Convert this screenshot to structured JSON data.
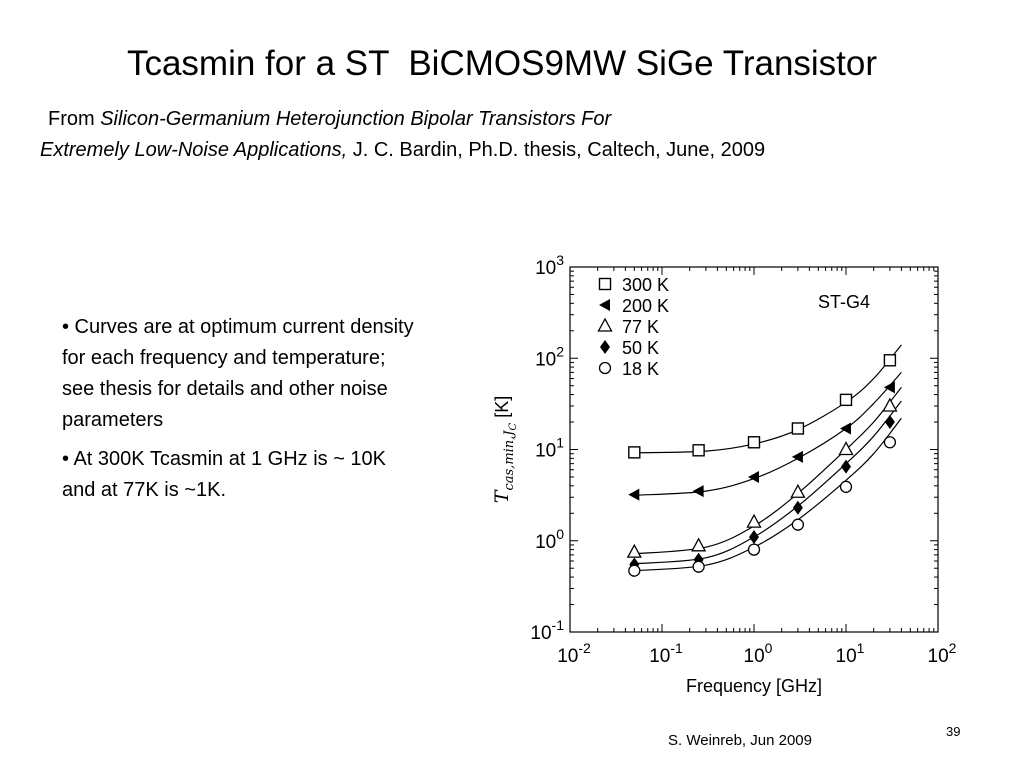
{
  "slide": {
    "title": "Tcasmin for a ST  BiCMOS9MW SiGe Transistor",
    "source_prefix": "From ",
    "source_title_line1": "Silicon-Germanium Heterojunction Bipolar Transistors For",
    "source_title_line2": "Extremely Low-Noise Applications,",
    "source_rest": " J. C. Bardin, Ph.D. thesis, Caltech, June, 2009",
    "bullets": [
      "• Curves are at optimum current density for each frequency and temperature; see thesis for details and other noise parameters",
      "• At 300K Tcasmin at 1 GHz is ~ 10K and at 77K is ~1K."
    ],
    "slide_number": "39",
    "footer": "S. Weinreb, Jun 2009"
  },
  "chart_data": {
    "type": "scatter",
    "annotation": "ST-G4",
    "xlabel": "Frequency [GHz]",
    "ylabel_main": "T",
    "ylabel_sub": "cas,min,J",
    "ylabel_subsub": "C",
    "ylabel_unit": " [K]",
    "x_scale": "log",
    "y_scale": "log",
    "xlim": [
      0.01,
      100
    ],
    "ylim": [
      0.1,
      1000
    ],
    "grid": false,
    "legend_position": "top-left",
    "x_tick_exponents": [
      "-2",
      "-1",
      "0",
      "1",
      "2"
    ],
    "y_tick_exponents": [
      "-1",
      "0",
      "1",
      "2",
      "3"
    ],
    "tick_base": "10",
    "x": [
      0.05,
      0.25,
      1.0,
      3.0,
      10.0,
      30.0
    ],
    "series": [
      {
        "name": "300 K",
        "marker": "open-square",
        "values": [
          9.3,
          9.8,
          12,
          17,
          35,
          95
        ],
        "fit": [
          [
            0.05,
            9.2
          ],
          [
            0.3,
            9.6
          ],
          [
            1,
            11.5
          ],
          [
            3,
            16.5
          ],
          [
            10,
            33
          ],
          [
            20,
            60
          ],
          [
            40,
            140
          ]
        ]
      },
      {
        "name": "200 K",
        "marker": "filled-left-triangle",
        "values": [
          3.2,
          3.5,
          5.0,
          8.3,
          17,
          48
        ],
        "fit": [
          [
            0.05,
            3.15
          ],
          [
            0.3,
            3.5
          ],
          [
            1,
            4.8
          ],
          [
            3,
            8.0
          ],
          [
            10,
            17
          ],
          [
            20,
            32
          ],
          [
            40,
            70
          ]
        ]
      },
      {
        "name": "77 K",
        "marker": "open-triangle",
        "values": [
          0.75,
          0.88,
          1.6,
          3.4,
          10,
          30
        ],
        "fit": [
          [
            0.05,
            0.72
          ],
          [
            0.3,
            0.85
          ],
          [
            1,
            1.45
          ],
          [
            3,
            3.3
          ],
          [
            10,
            10
          ],
          [
            20,
            20
          ],
          [
            40,
            48
          ]
        ]
      },
      {
        "name": "50 K",
        "marker": "filled-diamond",
        "values": [
          0.55,
          0.62,
          1.1,
          2.3,
          6.5,
          20
        ],
        "fit": [
          [
            0.05,
            0.56
          ],
          [
            0.3,
            0.65
          ],
          [
            1,
            1.1
          ],
          [
            3,
            2.4
          ],
          [
            10,
            7
          ],
          [
            20,
            14
          ],
          [
            40,
            34
          ]
        ]
      },
      {
        "name": "18 K",
        "marker": "open-circle",
        "values": [
          0.47,
          0.52,
          0.8,
          1.5,
          3.9,
          12
        ],
        "fit": [
          [
            0.05,
            0.47
          ],
          [
            0.3,
            0.54
          ],
          [
            1,
            0.85
          ],
          [
            3,
            1.7
          ],
          [
            10,
            4.6
          ],
          [
            20,
            9
          ],
          [
            40,
            22
          ]
        ]
      }
    ]
  }
}
